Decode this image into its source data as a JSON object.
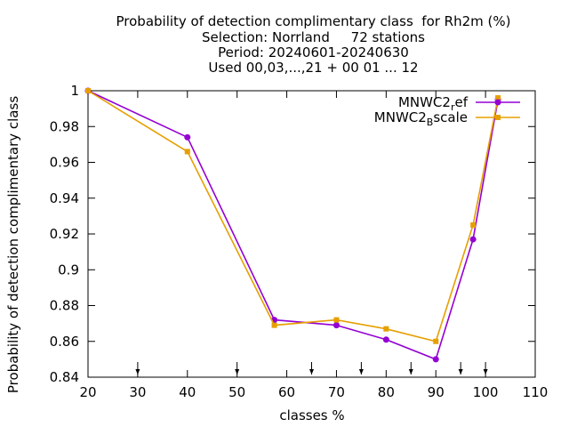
{
  "chart_data": {
    "type": "line",
    "title_lines": [
      "Probability of detection complimentary class  for Rh2m (%)",
      "Selection: Norrland     72 stations",
      "Period: 20240601-20240630",
      "Used 00,03,...,21 + 00 01 ... 12"
    ],
    "xlabel": "classes %",
    "ylabel": "Probability of detection complimentary class",
    "xlim": [
      20,
      110
    ],
    "ylim": [
      0.84,
      1.0
    ],
    "x_ticks": [
      20,
      30,
      40,
      50,
      60,
      70,
      80,
      90,
      100,
      110
    ],
    "y_ticks": [
      0.84,
      0.86,
      0.88,
      0.9,
      0.92,
      0.94,
      0.96,
      0.98,
      1
    ],
    "y_tick_labels": [
      "0.84",
      "0.86",
      "0.88",
      "0.9",
      "0.92",
      "0.94",
      "0.96",
      "0.98",
      "1"
    ],
    "grid": false,
    "legend_position": "top-right",
    "threshold_arrows_x": [
      30,
      50,
      65,
      75,
      85,
      95,
      100
    ],
    "series": [
      {
        "name": "MNWC2_ref",
        "legend_base": "MNWC2",
        "legend_sub": "r",
        "legend_rest": "ef",
        "color": "#9400d3",
        "marker": "filled-circle",
        "x": [
          20,
          40,
          57.5,
          70,
          80,
          90,
          97.5,
          102.5
        ],
        "y": [
          1.0,
          0.974,
          0.872,
          0.869,
          0.861,
          0.85,
          0.917,
          0.995
        ]
      },
      {
        "name": "MNWC2_Bscale",
        "legend_base": "MNWC2",
        "legend_sub": "B",
        "legend_rest": "scale",
        "color": "#e69f00",
        "marker": "filled-square",
        "x": [
          20,
          40,
          57.5,
          70,
          80,
          90,
          97.5,
          102.5
        ],
        "y": [
          1.0,
          0.966,
          0.869,
          0.872,
          0.867,
          0.86,
          0.925,
          0.996
        ]
      }
    ]
  }
}
